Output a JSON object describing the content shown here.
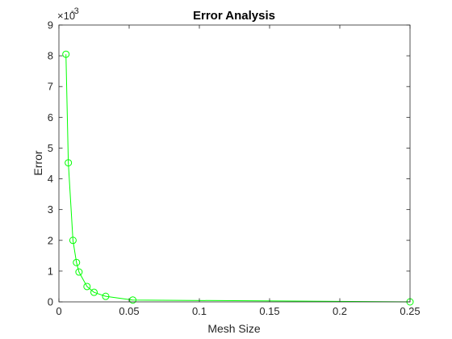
{
  "chart_data": {
    "type": "line",
    "title": "Error Analysis",
    "xlabel": "Mesh Size",
    "ylabel": "Error",
    "xlim": [
      0,
      0.25
    ],
    "ylim": [
      0,
      0.009
    ],
    "x_ticks": [
      "0",
      "0.05",
      "0.1",
      "0.15",
      "0.2",
      "0.25"
    ],
    "x_tick_values": [
      0,
      0.05,
      0.1,
      0.15,
      0.2,
      0.25
    ],
    "y_ticks": [
      "0",
      "1",
      "2",
      "3",
      "4",
      "5",
      "6",
      "7",
      "8",
      "9"
    ],
    "y_tick_values": [
      0,
      0.001,
      0.002,
      0.003,
      0.004,
      0.005,
      0.006,
      0.007,
      0.008,
      0.009
    ],
    "y_exponent_base": "×10",
    "y_exponent_power": "-3",
    "grid": false,
    "series": [
      {
        "color": "#00ff00",
        "marker": "circle",
        "x": [
          0.005,
          0.0067,
          0.01,
          0.0125,
          0.0143,
          0.02,
          0.025,
          0.0333,
          0.0526,
          0.25
        ],
        "y": [
          0.00805,
          0.00452,
          0.002,
          0.00128,
          0.00097,
          0.0005,
          0.00031,
          0.00018,
          6e-05,
          0.0
        ]
      }
    ]
  }
}
